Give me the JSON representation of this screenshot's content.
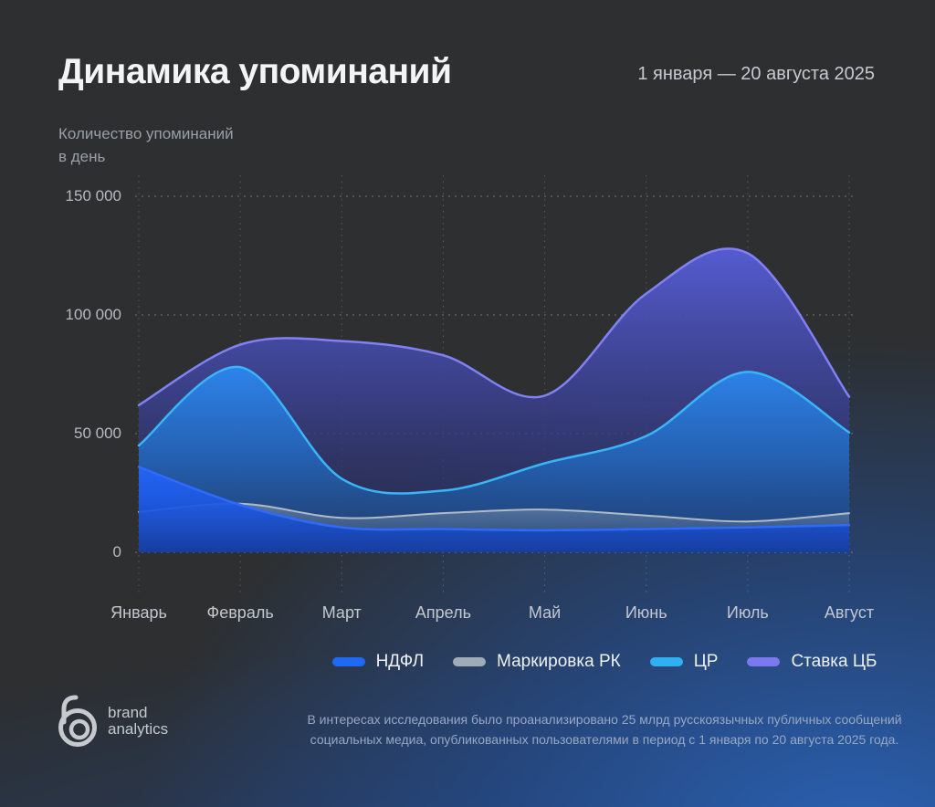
{
  "header": {
    "title": "Динамика упоминаний",
    "date_range": "1 января — 20 августа 2025"
  },
  "y_axis": {
    "title_line1": "Количество упоминаний",
    "title_line2": "в день",
    "ticks": [
      {
        "label": "150 000",
        "value": 150000
      },
      {
        "label": "100 000",
        "value": 100000
      },
      {
        "label": "50 000",
        "value": 50000
      },
      {
        "label": "0",
        "value": 0
      }
    ]
  },
  "chart_data": {
    "type": "area",
    "title": "Динамика упоминаний",
    "categories": [
      "Январь",
      "Февраль",
      "Март",
      "Апрель",
      "Май",
      "Июнь",
      "Июль",
      "Август"
    ],
    "ylim": [
      0,
      150000
    ],
    "grid": "dashed",
    "legend_position": "bottom",
    "series": [
      {
        "name": "НДФЛ",
        "slug": "ndfl",
        "z": 4,
        "stroke": "#2e6bfb",
        "stroke_width": 2.5,
        "fill": [
          "rgba(36,101,245,0.97)",
          "rgba(27,85,222,0.92)",
          "rgba(19,60,168,0.85)"
        ],
        "values": [
          36000,
          20000,
          10500,
          9800,
          9300,
          9800,
          10500,
          11500
        ]
      },
      {
        "name": "Маркировка РК",
        "slug": "markirovka-rk",
        "z": 3,
        "stroke": "#b0bbc6",
        "stroke_width": 2,
        "fill": [
          "rgba(160,175,190,0.42)",
          "rgba(140,155,172,0.26)",
          "rgba(120,135,152,0.12)"
        ],
        "values": [
          17000,
          20500,
          14500,
          16500,
          18000,
          15500,
          13000,
          16500
        ]
      },
      {
        "name": "ЦР",
        "slug": "tsr",
        "z": 2,
        "stroke": "#38b6f7",
        "stroke_width": 2.5,
        "fill": [
          "rgba(45,134,238,0.97)",
          "rgba(34,105,192,0.82)",
          "rgba(25,76,138,0.5)"
        ],
        "values": [
          45000,
          78000,
          31000,
          26000,
          37500,
          49000,
          76000,
          50500
        ]
      },
      {
        "name": "Ставка ЦБ",
        "slug": "stavka-tsb",
        "z": 1,
        "stroke": "#8280f5",
        "stroke_width": 2.5,
        "fill": [
          "rgba(86,93,214,0.97)",
          "rgba(58,64,142,0.85)",
          "rgba(34,40,88,0.5)"
        ],
        "values": [
          62000,
          87500,
          89000,
          83000,
          66000,
          109000,
          126000,
          65500
        ]
      }
    ]
  },
  "legend": {
    "items": [
      {
        "label": "НДФЛ",
        "slug": "ndfl",
        "color": "#1f6af5"
      },
      {
        "label": "Маркировка РК",
        "slug": "markirovka-rk",
        "color": "#9fabb8"
      },
      {
        "label": "ЦР",
        "slug": "tsr",
        "color": "#2eb0f1"
      },
      {
        "label": "Ставка ЦБ",
        "slug": "stavka-tsb",
        "color": "#7b79f0"
      }
    ]
  },
  "footer": {
    "line1": "В интересах исследования было проанализировано 25 млрд русскоязычных публичных сообщений",
    "line2": "социальных медиа, опубликованных пользователями в период с 1 января по 20 августа 2025 года."
  },
  "logo": {
    "line1": "brand",
    "line2": "analytics"
  }
}
